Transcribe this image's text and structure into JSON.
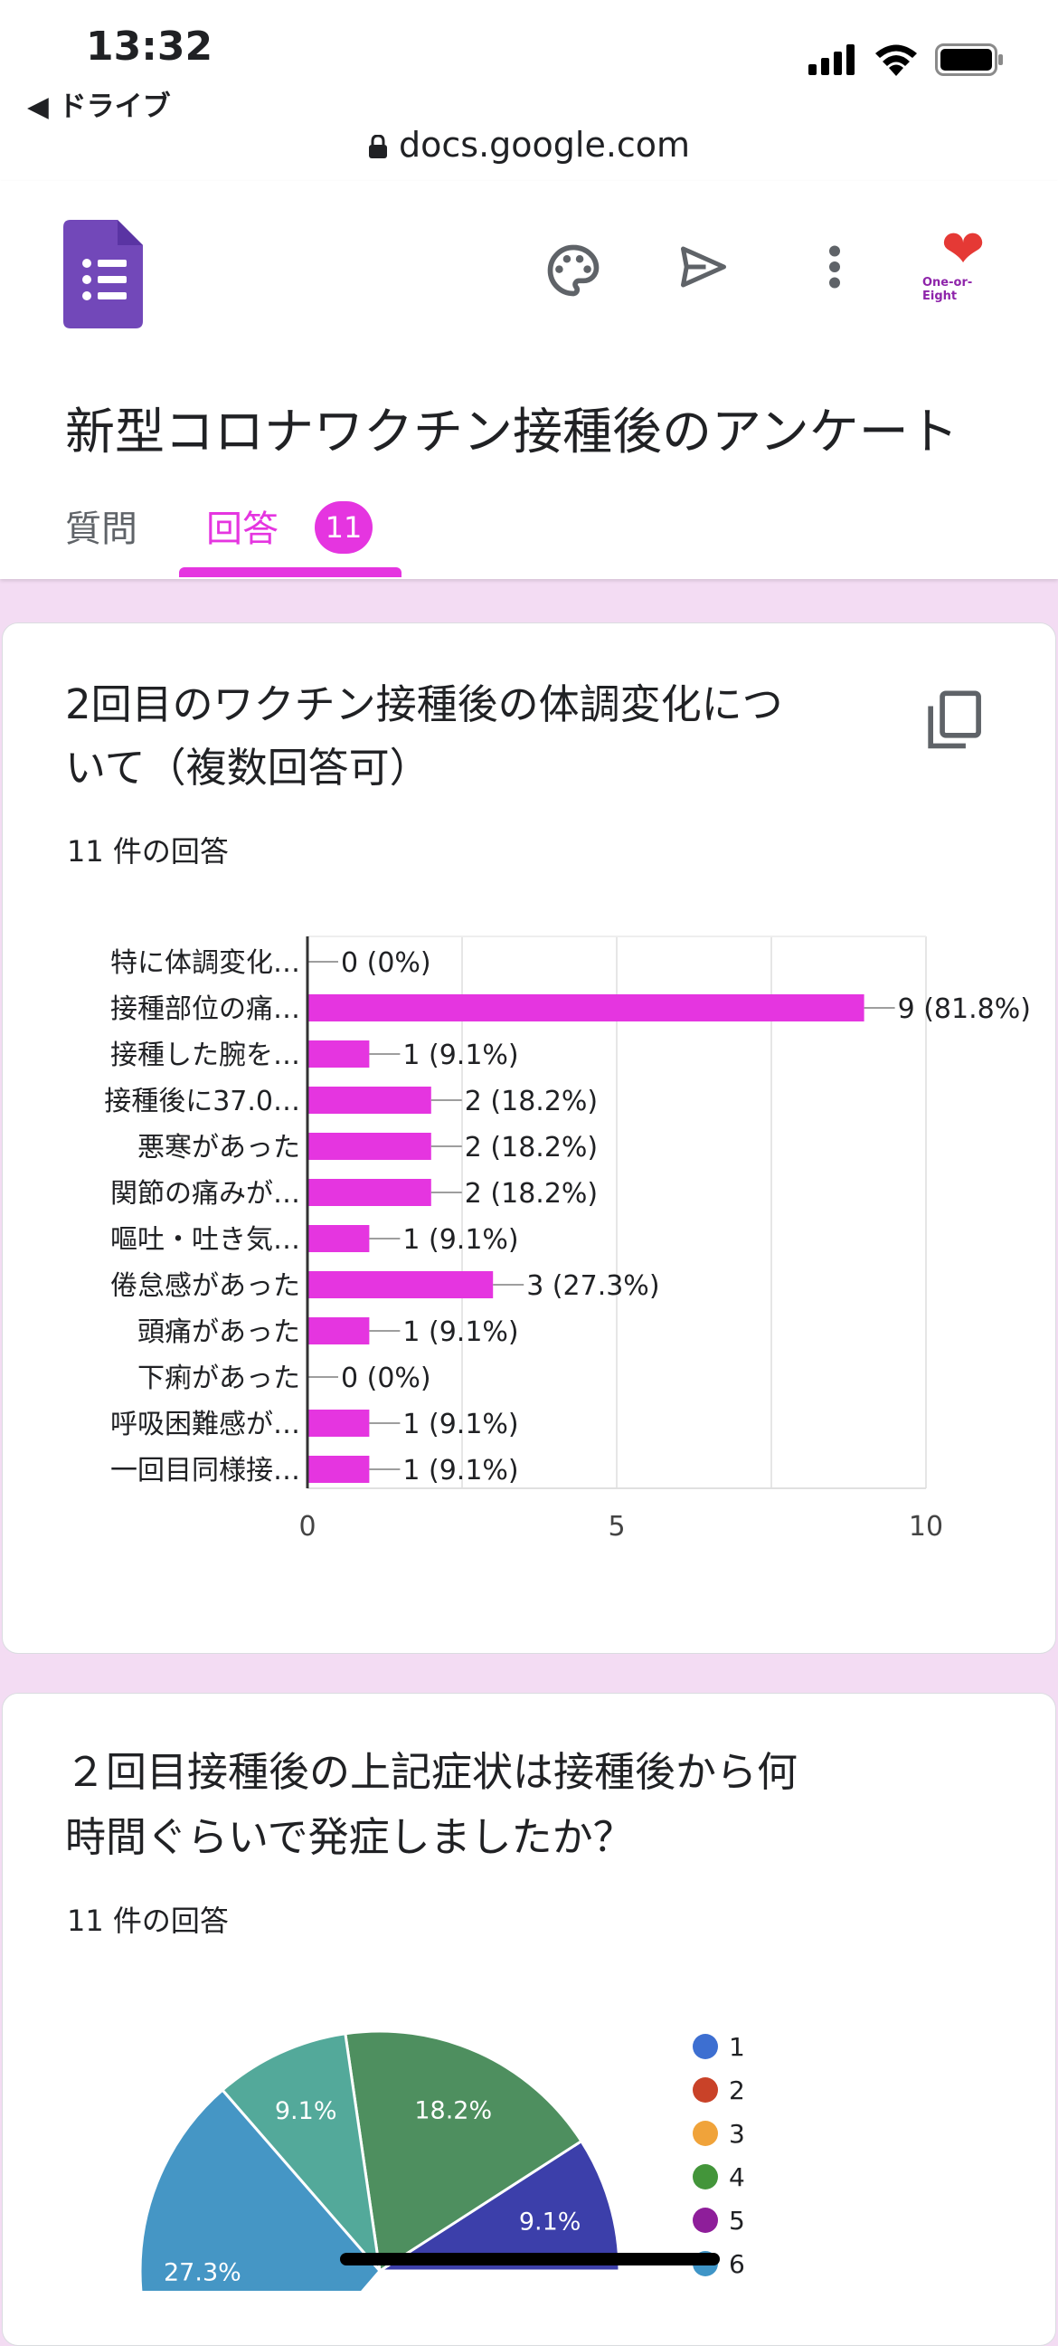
{
  "status_bar": {
    "time": "13:32",
    "back_label": "◀ ドライブ",
    "url": "docs.google.com"
  },
  "app": {
    "icons": [
      "forms-logo-icon",
      "palette-icon",
      "send-icon",
      "more-vert-icon",
      "avatar"
    ],
    "avatar_text": "One-or-Eight",
    "form_title": "新型コロナワクチン接種後のアンケート",
    "tabs": {
      "questions": "質問",
      "responses": "回答",
      "responses_count": "11"
    },
    "accent_color": "#e535e0"
  },
  "question1": {
    "title_line1": "2回目のワクチン接種後の体調変化につ",
    "title_line2": "いて（複数回答可）",
    "response_count": "11 件の回答",
    "chart_data": {
      "type": "bar",
      "orientation": "horizontal",
      "categories": [
        "特に体調変化…",
        "接種部位の痛…",
        "接種した腕を…",
        "接種後に37.0…",
        "悪寒があった",
        "関節の痛みが…",
        "嘔吐・吐き気…",
        "倦怠感があった",
        "頭痛があった",
        "下痢があった",
        "呼吸困難感が…",
        "一回目同様接…"
      ],
      "values": [
        0,
        9,
        1,
        2,
        2,
        2,
        1,
        3,
        1,
        0,
        1,
        1
      ],
      "data_labels": [
        "0 (0%)",
        "9 (81.8%)",
        "1 (9.1%)",
        "2 (18.2%)",
        "2 (18.2%)",
        "2 (18.2%)",
        "1 (9.1%)",
        "3 (27.3%)",
        "1 (9.1%)",
        "0 (0%)",
        "1 (9.1%)",
        "1 (9.1%)"
      ],
      "xlim": [
        0,
        10
      ],
      "xticks": [
        "0",
        "5",
        "10"
      ],
      "grid": true,
      "bar_color": "#e535e0"
    }
  },
  "question2": {
    "title_line1": "２回目接種後の上記症状は接種後から何",
    "title_line2": "時間ぐらいで発症しましたか？",
    "response_count": "11 件の回答",
    "chart_data": {
      "type": "pie",
      "slices": [
        {
          "label": "27.3%",
          "value": 27.3,
          "color": "#4596c5"
        },
        {
          "label": "9.1%",
          "value": 9.1,
          "color": "#53a99a"
        },
        {
          "label": "18.2%",
          "value": 18.2,
          "color": "#4e8f5f"
        },
        {
          "label": "9.1%",
          "value": 9.1,
          "color": "#3c3faa"
        }
      ],
      "legend": [
        {
          "label": "1",
          "color": "#3d6fd1"
        },
        {
          "label": "2",
          "color": "#c94228"
        },
        {
          "label": "3",
          "color": "#f0a33a"
        },
        {
          "label": "4",
          "color": "#43953a"
        },
        {
          "label": "5",
          "color": "#8e1e9a"
        },
        {
          "label": "6",
          "color": "#3f95c7"
        }
      ],
      "legend_position": "right"
    }
  }
}
